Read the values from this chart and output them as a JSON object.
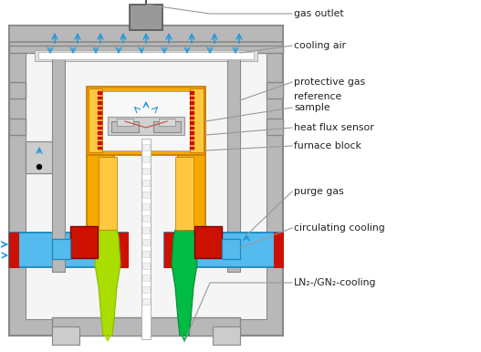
{
  "labels": {
    "gas_outlet": "gas outlet",
    "cooling_air": "cooling air",
    "protective_gas": "protective gas",
    "reference_sample": "reference\nsample",
    "heat_flux_sensor": "heat flux sensor",
    "furnace_block": "furnace block",
    "purge_gas": "purge gas",
    "circulating_cooling": "circulating cooling",
    "ln2_cooling": "LN₂-/GN₂-cooling"
  },
  "colors": {
    "background": "#ffffff",
    "outer_gray": "#b8b8b8",
    "outer_gray_dark": "#888888",
    "inner_bg": "#e8e8e8",
    "white_inner": "#f5f5f5",
    "furnace_yellow": "#f5a800",
    "furnace_yellow_light": "#ffc840",
    "furnace_yellow_dark": "#c88000",
    "heating_red": "#cc1100",
    "blue_cool": "#55bbee",
    "blue_dark": "#1a88bb",
    "blue_arrow": "#2299dd",
    "green_yellow": "#aadd00",
    "green_mid": "#66dd00",
    "green_dark": "#00bb44",
    "red_block": "#cc1100",
    "blue_block": "#3399cc",
    "line_col": "#888888",
    "text_col": "#222222",
    "gray_top": "#999999",
    "gray_med": "#aaaaaa",
    "gray_light": "#cccccc",
    "dark": "#555555"
  },
  "figsize": [
    5.27,
    3.86
  ],
  "dpi": 100
}
